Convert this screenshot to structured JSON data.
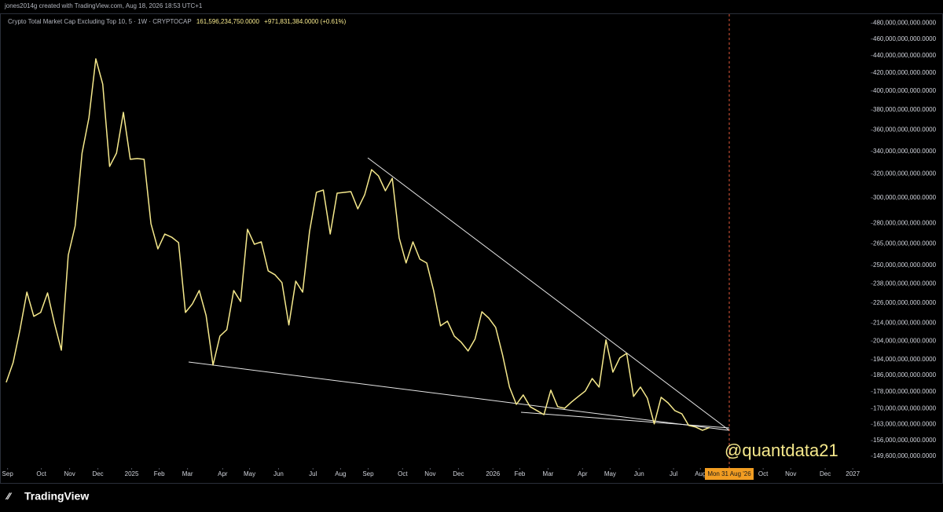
{
  "header": {
    "attribution": "jones2014g created with TradingView.com, Aug 18, 2026 18:53 UTC+1"
  },
  "footer": {
    "logo": "TradingView"
  },
  "chart_data": {
    "type": "line",
    "title": "Crypto Total Market Cap Excluding Top 10, 5 · 1W · CRYPTOCAP",
    "annotations": [
      "161,596,234,750.0000",
      "+971,831,384.0000 (+0.61%)",
      "@quantdata21",
      "Mon 31 Aug '26"
    ],
    "log_scale": true,
    "grid": false,
    "series": [
      {
        "name": "CRYPTOCAP",
        "color": "#f6e98c",
        "values": [
          182500000000,
          192400000000,
          210300000000,
          232700000000,
          218000000000,
          220300000000,
          232200000000,
          213900000000,
          199000000000,
          257000000000,
          278000000000,
          338300000000,
          372100000000,
          436100000000,
          407500000000,
          326400000000,
          338300000000,
          377600000000,
          332700000000,
          333400000000,
          332700000000,
          279700000000,
          261400000000,
          272100000000,
          269800000000,
          265900000000,
          220300000000,
          225400000000,
          233700000000,
          218400000000,
          191200000000,
          206700000000,
          210300000000,
          233700000000,
          226900000000,
          275600000000,
          264700000000,
          266400000000,
          246400000000,
          243800000000,
          238700000000,
          213000000000,
          239700000000,
          232700000000,
          273900000000,
          304400000000,
          306300000000,
          272100000000,
          303700000000,
          304400000000,
          305000000000,
          291200000000,
          302500000000,
          323600000000,
          318200000000,
          305700000000,
          316200000000,
          269300000000,
          251700000000,
          266400000000,
          254300000000,
          251700000000,
          233700000000,
          212500000000,
          215200000000,
          206700000000,
          203300000000,
          198600000000,
          205000000000,
          220700000000,
          217000000000,
          211600000000,
          196500000000,
          180200000000,
          172000000000,
          176400000000,
          170900000000,
          169100000000,
          167300000000,
          178700000000,
          170900000000,
          170200000000,
          173100000000,
          175700000000,
          178300000000,
          184400000000,
          180200000000,
          204600000000,
          187600000000,
          194900000000,
          197300000000,
          175700000000,
          180200000000,
          174900000000,
          163200000000,
          175300000000,
          172700000000,
          169100000000,
          167700000000,
          162500000000,
          161800000000,
          160400000000,
          161600000000
        ]
      }
    ],
    "xlim": [
      -0.9,
      125.4
    ],
    "xticks": [
      {
        "value": 0.2,
        "label": "Sep"
      },
      {
        "value": 5.1,
        "label": "Oct"
      },
      {
        "value": 9.2,
        "label": "Nov"
      },
      {
        "value": 13.3,
        "label": "Dec"
      },
      {
        "value": 18.2,
        "label": "2025"
      },
      {
        "value": 22.2,
        "label": "Feb"
      },
      {
        "value": 26.3,
        "label": "Mar"
      },
      {
        "value": 31.4,
        "label": "Apr"
      },
      {
        "value": 35.3,
        "label": "May"
      },
      {
        "value": 39.5,
        "label": "Jun"
      },
      {
        "value": 44.5,
        "label": "Jul"
      },
      {
        "value": 48.5,
        "label": "Aug"
      },
      {
        "value": 52.5,
        "label": "Sep"
      },
      {
        "value": 57.5,
        "label": "Oct"
      },
      {
        "value": 61.5,
        "label": "Nov"
      },
      {
        "value": 65.6,
        "label": "Dec"
      },
      {
        "value": 70.6,
        "label": "2026"
      },
      {
        "value": 74.5,
        "label": "Feb"
      },
      {
        "value": 78.6,
        "label": "Mar"
      },
      {
        "value": 83.6,
        "label": "Apr"
      },
      {
        "value": 87.6,
        "label": "May"
      },
      {
        "value": 91.8,
        "label": "Jun"
      },
      {
        "value": 96.8,
        "label": "Jul"
      },
      {
        "value": 100.7,
        "label": "Aug"
      },
      {
        "value": 109.8,
        "label": "Oct"
      },
      {
        "value": 113.8,
        "label": "Nov"
      },
      {
        "value": 118.8,
        "label": "Dec"
      },
      {
        "value": 122.8,
        "label": "2027"
      }
    ],
    "ylim": [
      144900000000,
      491900000000
    ],
    "yticks": [
      {
        "value": 480000000000,
        "label": "480,000,000,000.0000"
      },
      {
        "value": 460000000000,
        "label": "460,000,000,000.0000"
      },
      {
        "value": 440000000000,
        "label": "440,000,000,000.0000"
      },
      {
        "value": 420000000000,
        "label": "420,000,000,000.0000"
      },
      {
        "value": 400000000000,
        "label": "400,000,000,000.0000"
      },
      {
        "value": 380000000000,
        "label": "380,000,000,000.0000"
      },
      {
        "value": 360000000000,
        "label": "360,000,000,000.0000"
      },
      {
        "value": 340000000000,
        "label": "340,000,000,000.0000"
      },
      {
        "value": 320000000000,
        "label": "320,000,000,000.0000"
      },
      {
        "value": 300000000000,
        "label": "300,000,000,000.0000"
      },
      {
        "value": 280000000000,
        "label": "280,000,000,000.0000"
      },
      {
        "value": 265000000000,
        "label": "265,000,000,000.0000"
      },
      {
        "value": 250000000000,
        "label": "250,000,000,000.0000"
      },
      {
        "value": 238000000000,
        "label": "238,000,000,000.0000"
      },
      {
        "value": 226000000000,
        "label": "226,000,000,000.0000"
      },
      {
        "value": 214000000000,
        "label": "214,000,000,000.0000"
      },
      {
        "value": 204000000000,
        "label": "204,000,000,000.0000"
      },
      {
        "value": 194000000000,
        "label": "194,000,000,000.0000"
      },
      {
        "value": 186000000000,
        "label": "186,000,000,000.0000"
      },
      {
        "value": 178000000000,
        "label": "178,000,000,000.0000"
      },
      {
        "value": 170000000000,
        "label": "170,000,000,000.0000"
      },
      {
        "value": 163000000000,
        "label": "163,000,000,000.0000"
      },
      {
        "value": 156000000000,
        "label": "156,000,000,000.0000"
      },
      {
        "value": 149600000000,
        "label": "149,600,000,000.0000"
      }
    ]
  }
}
